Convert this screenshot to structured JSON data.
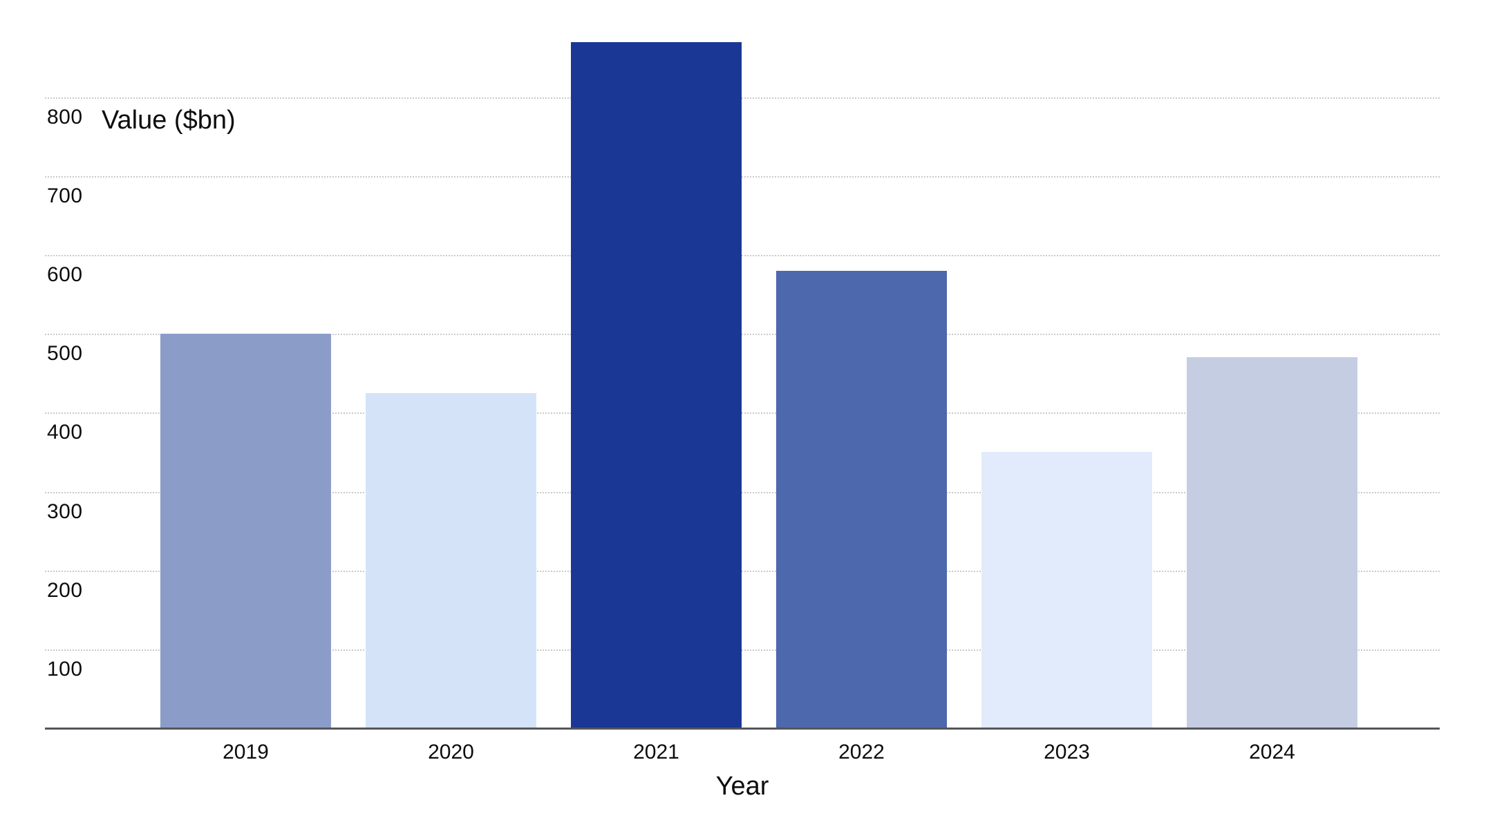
{
  "chart_data": {
    "type": "bar",
    "title": "",
    "ylabel": "Value ($bn)",
    "xlabel": "Year",
    "categories": [
      "2019",
      "2020",
      "2021",
      "2022",
      "2023",
      "2024"
    ],
    "values": [
      500,
      425,
      870,
      580,
      350,
      470
    ],
    "yticks": [
      100,
      200,
      300,
      400,
      500,
      600,
      700,
      800
    ],
    "ylim": [
      0,
      880
    ],
    "grid": "horizontal-dotted",
    "legend_position": "none",
    "bar_colors": [
      "#8c9cc8",
      "#d4e3f8",
      "#1a3795",
      "#4e68ae",
      "#e2ebfb",
      "#c5cde3"
    ],
    "colors": {
      "background": "#ffffff",
      "gridline": "#c9c9c9",
      "axis_line": "#55565a",
      "text": "#0d0d0d"
    }
  }
}
